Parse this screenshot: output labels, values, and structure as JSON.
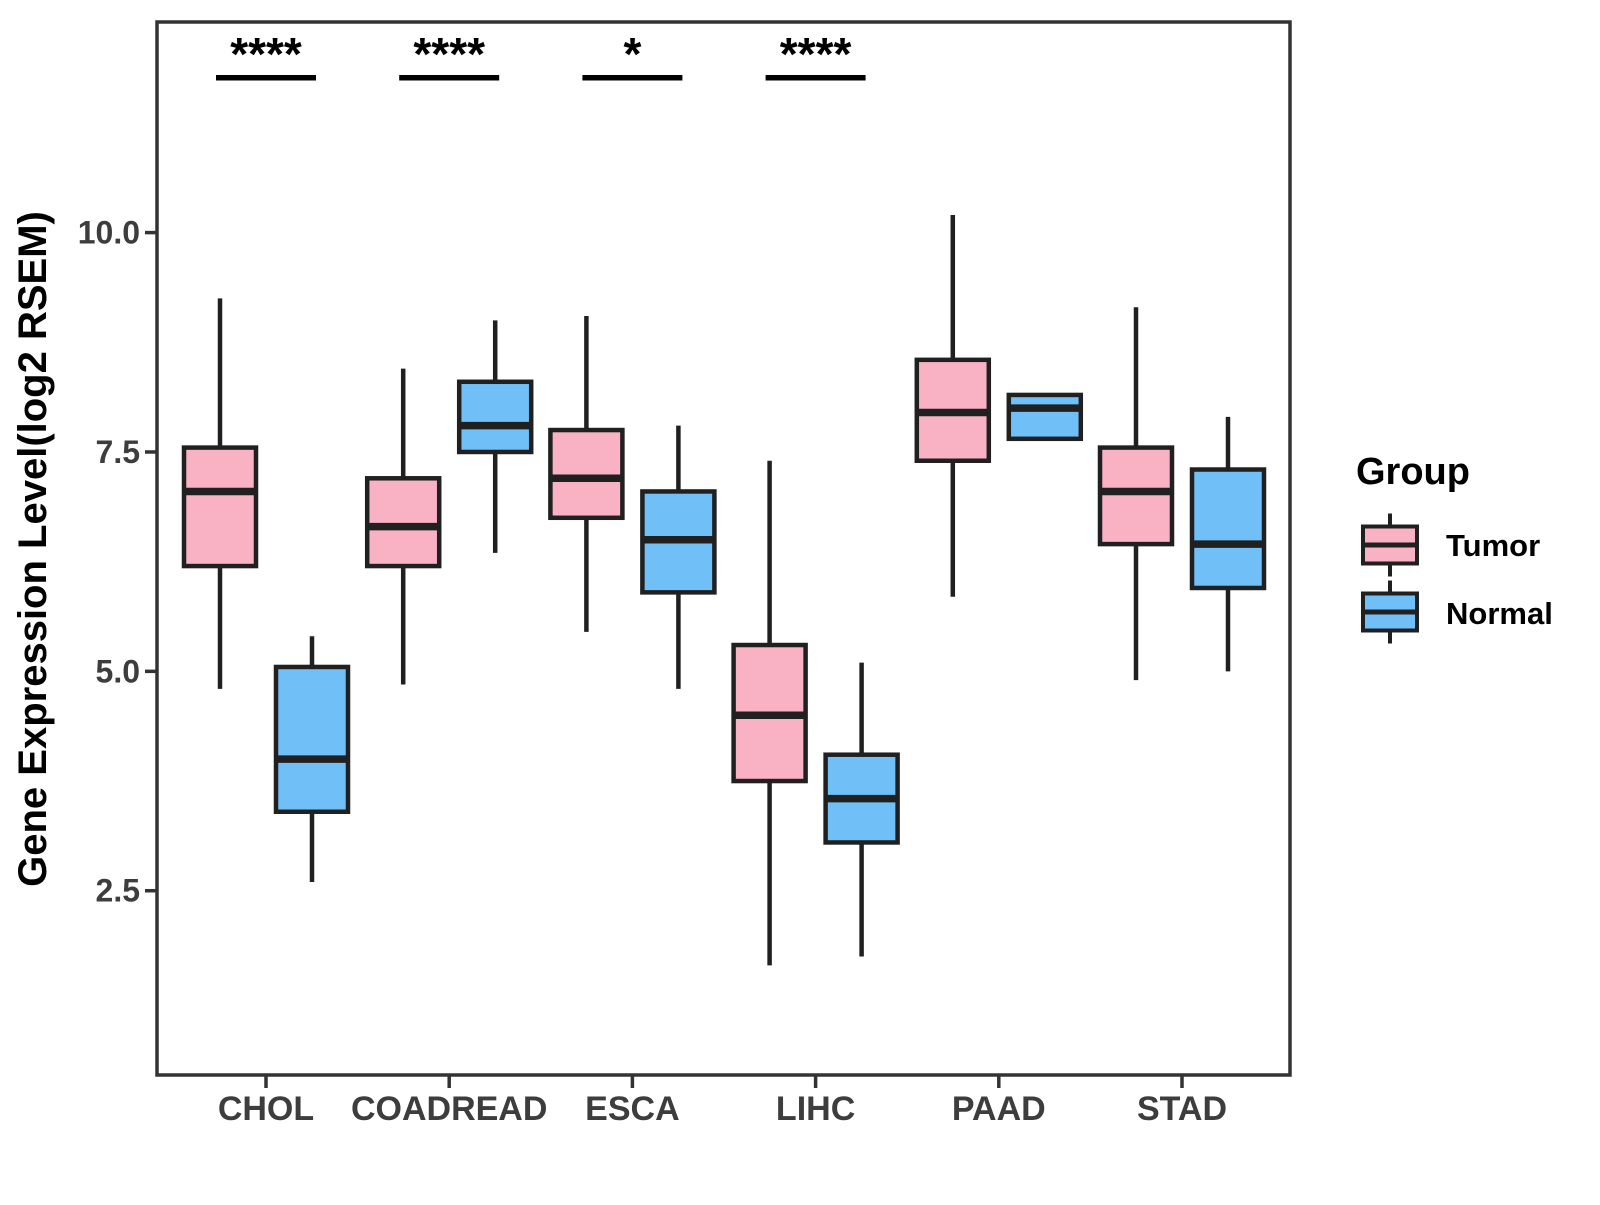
{
  "y_axis": {
    "label": "Gene Expression Level(log2 RSEM)",
    "ticks": [
      "10.0",
      "7.5",
      "5.0",
      "2.5"
    ],
    "tick_values": [
      10.0,
      7.5,
      5.0,
      2.5
    ]
  },
  "x_axis": {
    "categories": [
      "CHOL",
      "COADREAD",
      "ESCA",
      "LIHC",
      "PAAD",
      "STAD"
    ]
  },
  "legend": {
    "title": "Group",
    "entries": [
      {
        "label": "Tumor",
        "color": "#F9B1C4"
      },
      {
        "label": "Normal",
        "color": "#70BFF7"
      }
    ]
  },
  "colors": {
    "tumor_fill": "#F9B1C4",
    "normal_fill": "#70BFF7",
    "box_stroke": "#202020",
    "panel_stroke": "#333333",
    "tick_text": "#3d3d3d",
    "background": "#ffffff"
  },
  "chart_data": {
    "type": "boxplot",
    "orientation": "vertical",
    "title": "",
    "xlabel": "",
    "ylabel": "Gene Expression Level(log2 RSEM)",
    "categories": [
      "CHOL",
      "COADREAD",
      "ESCA",
      "LIHC",
      "PAAD",
      "STAD"
    ],
    "ylim": [
      0.4,
      12.4
    ],
    "y_ticks": [
      2.5,
      5.0,
      7.5,
      10.0
    ],
    "grid": false,
    "legend_position": "right",
    "series": [
      {
        "name": "Tumor",
        "color": "#F9B1C4",
        "boxes": [
          {
            "category": "CHOL",
            "whisker_low": 4.8,
            "q1": 6.2,
            "median": 7.05,
            "q3": 7.55,
            "whisker_high": 9.25
          },
          {
            "category": "COADREAD",
            "whisker_low": 4.85,
            "q1": 6.2,
            "median": 6.65,
            "q3": 7.2,
            "whisker_high": 8.45
          },
          {
            "category": "ESCA",
            "whisker_low": 5.45,
            "q1": 6.75,
            "median": 7.2,
            "q3": 7.75,
            "whisker_high": 9.05
          },
          {
            "category": "LIHC",
            "whisker_low": 1.65,
            "q1": 3.75,
            "median": 4.5,
            "q3": 5.3,
            "whisker_high": 7.4
          },
          {
            "category": "PAAD",
            "whisker_low": 5.85,
            "q1": 7.4,
            "median": 7.95,
            "q3": 8.55,
            "whisker_high": 10.2
          },
          {
            "category": "STAD",
            "whisker_low": 4.9,
            "q1": 6.45,
            "median": 7.05,
            "q3": 7.55,
            "whisker_high": 9.15
          }
        ]
      },
      {
        "name": "Normal",
        "color": "#70BFF7",
        "boxes": [
          {
            "category": "CHOL",
            "whisker_low": 2.6,
            "q1": 3.4,
            "median": 4.0,
            "q3": 5.05,
            "whisker_high": 5.4
          },
          {
            "category": "COADREAD",
            "whisker_low": 6.35,
            "q1": 7.5,
            "median": 7.8,
            "q3": 8.3,
            "whisker_high": 9.0
          },
          {
            "category": "ESCA",
            "whisker_low": 4.8,
            "q1": 5.9,
            "median": 6.5,
            "q3": 7.05,
            "whisker_high": 7.8
          },
          {
            "category": "LIHC",
            "whisker_low": 1.75,
            "q1": 3.05,
            "median": 3.55,
            "q3": 4.05,
            "whisker_high": 5.1
          },
          {
            "category": "PAAD",
            "whisker_low": 7.65,
            "q1": 7.65,
            "median": 8.0,
            "q3": 8.15,
            "whisker_high": 8.15
          },
          {
            "category": "STAD",
            "whisker_low": 5.0,
            "q1": 5.95,
            "median": 6.45,
            "q3": 7.3,
            "whisker_high": 7.9
          }
        ]
      }
    ],
    "significance": [
      {
        "category": "CHOL",
        "label": "****"
      },
      {
        "category": "COADREAD",
        "label": "****"
      },
      {
        "category": "ESCA",
        "label": "*"
      },
      {
        "category": "LIHC",
        "label": "****"
      }
    ]
  }
}
